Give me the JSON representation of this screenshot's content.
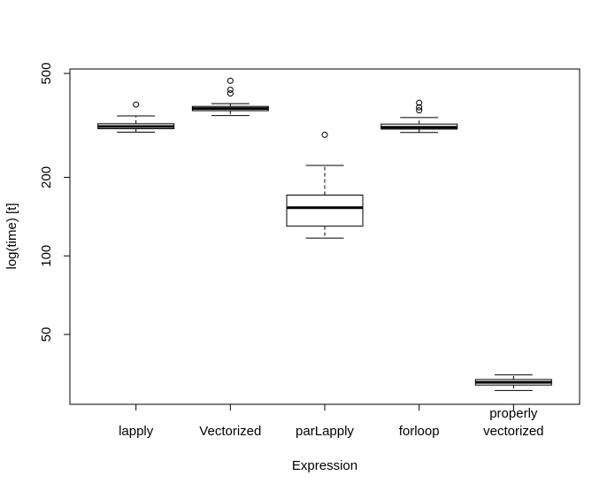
{
  "chart_data": {
    "type": "box",
    "xlabel": "Expression",
    "ylabel": "log(time) [t]",
    "y_scale": "log",
    "ylim": [
      27,
      520
    ],
    "y_ticks": [
      50,
      100,
      200,
      500
    ],
    "y_tick_labels": [
      "50",
      "100",
      "200",
      "500"
    ],
    "grid": false,
    "categories": [
      [
        "lapply"
      ],
      [
        "Vectorized"
      ],
      [
        "parLapply"
      ],
      [
        "forloop"
      ],
      [
        "properly",
        "vectorized"
      ]
    ],
    "boxes": [
      {
        "min": 298,
        "q1": 307,
        "median": 313,
        "q3": 321,
        "max": 344,
        "outliers": [
          380
        ]
      },
      {
        "min": 345,
        "q1": 360,
        "median": 367,
        "q3": 374,
        "max": 383,
        "outliers": [
          419,
          433,
          469
        ]
      },
      {
        "min": 117,
        "q1": 130,
        "median": 153,
        "q3": 171,
        "max": 222,
        "outliers": [
          291
        ]
      },
      {
        "min": 297,
        "q1": 306,
        "median": 311,
        "q3": 320,
        "max": 339,
        "outliers": [
          361,
          371,
          386
        ]
      },
      {
        "min": 30.5,
        "q1": 32.0,
        "median": 32.8,
        "q3": 33.6,
        "max": 35.0,
        "outliers": []
      }
    ]
  }
}
